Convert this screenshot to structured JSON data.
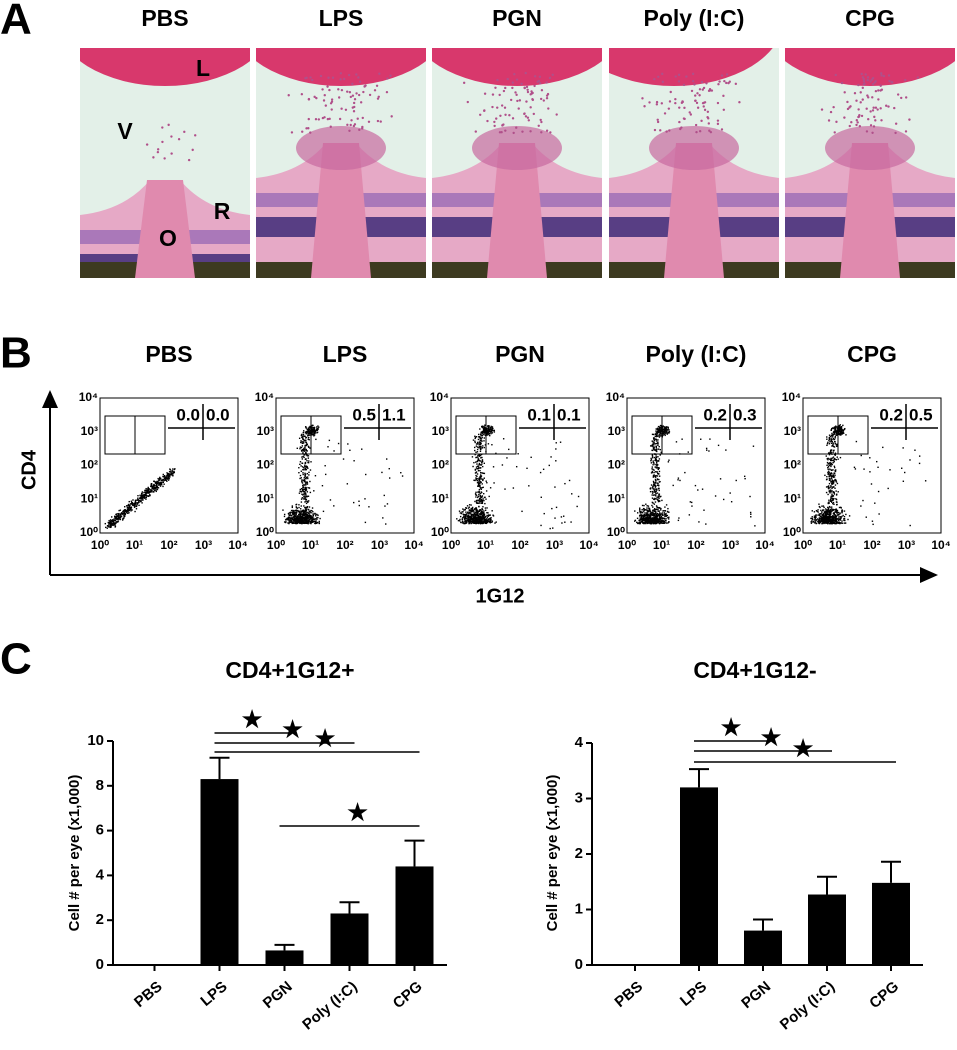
{
  "panel_labels": [
    "A",
    "B",
    "C"
  ],
  "histology": {
    "titles": [
      "PBS",
      "LPS",
      "PGN",
      "Poly (I:C)",
      "CPG"
    ],
    "annotations": [
      "L",
      "V",
      "R",
      "O"
    ]
  },
  "flow": {
    "titles": [
      "PBS",
      "LPS",
      "PGN",
      "Poly (I:C)",
      "CPG"
    ],
    "y_label": "CD4",
    "x_label": "1G12",
    "ticks": [
      "10⁰",
      "10¹",
      "10²",
      "10³",
      "10⁴"
    ],
    "quadrants": [
      [
        "0.0",
        "0.0"
      ],
      [
        "0.5",
        "1.1"
      ],
      [
        "0.1",
        "0.1"
      ],
      [
        "0.2",
        "0.3"
      ],
      [
        "0.2",
        "0.5"
      ]
    ]
  },
  "chart_data": [
    {
      "type": "bar",
      "title": "CD4+1G12+",
      "ylabel": "Cell # per eye (x1,000)",
      "categories": [
        "PBS",
        "LPS",
        "PGN",
        "Poly (I:C)",
        "CPG"
      ],
      "values": [
        0,
        8.3,
        0.65,
        2.3,
        4.4
      ],
      "errors": [
        0,
        0.95,
        0.25,
        0.5,
        1.15
      ],
      "color": "#000000",
      "ylim": [
        0,
        10
      ],
      "yticks": [
        0,
        2,
        4,
        6,
        8,
        10
      ],
      "significance": [
        {
          "from": 1,
          "to": 2,
          "label": "★"
        },
        {
          "from": 1,
          "to": 3,
          "label": "★"
        },
        {
          "from": 1,
          "to": 4,
          "label": "★"
        },
        {
          "from": 2,
          "to": 4,
          "label": "★"
        }
      ]
    },
    {
      "type": "bar",
      "title": "CD4+1G12-",
      "ylabel": "Cell # per eye (x1,000)",
      "categories": [
        "PBS",
        "LPS",
        "PGN",
        "Poly (I:C)",
        "CPG"
      ],
      "values": [
        0,
        3.2,
        0.62,
        1.27,
        1.48
      ],
      "errors": [
        0,
        0.33,
        0.2,
        0.32,
        0.38
      ],
      "color": "#000000",
      "ylim": [
        0,
        4
      ],
      "yticks": [
        0,
        1,
        2,
        3,
        4
      ],
      "significance": [
        {
          "from": 1,
          "to": 2,
          "label": "★"
        },
        {
          "from": 1,
          "to": 3,
          "label": "★"
        },
        {
          "from": 1,
          "to": 4,
          "label": "★"
        }
      ]
    }
  ]
}
